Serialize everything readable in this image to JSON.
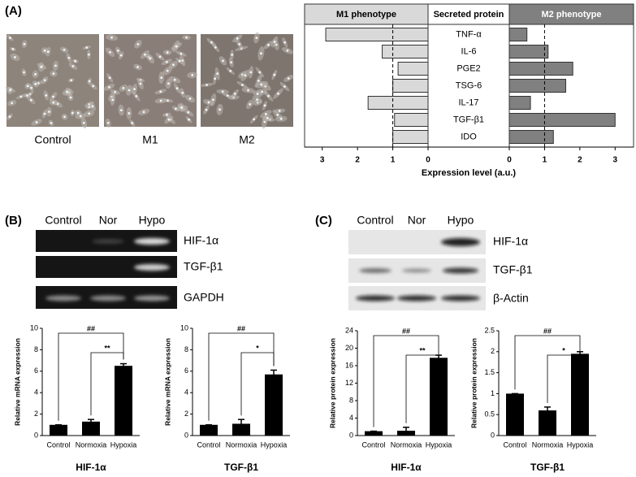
{
  "panels": [
    "(A)",
    "(B)",
    "(C)"
  ],
  "microscopy": [
    "Control",
    "M1",
    "M2"
  ],
  "rt_pcr": {
    "lanes": [
      "Control",
      "Nor",
      "Hypo"
    ],
    "genes": [
      "HIF-1α",
      "TGF-β1",
      "GAPDH"
    ]
  },
  "western_blot": {
    "lanes": [
      "Control",
      "Nor",
      "Hypo"
    ],
    "proteins": [
      "HIF-1α",
      "TGF-β1",
      "β-Actin"
    ]
  },
  "chart_data": [
    {
      "type": "butterfly",
      "category_header": "Secreted protein",
      "categories": [
        "TNF-α",
        "IL-6",
        "PGE2",
        "TSG-6",
        "IL-17",
        "TGF-β1",
        "IDO"
      ],
      "series": [
        {
          "name": "M1 phenotype",
          "color": "#d9d9d9",
          "values": [
            2.9,
            1.3,
            0.85,
            1.0,
            1.7,
            0.95,
            1.0
          ]
        },
        {
          "name": "M2 phenotype",
          "color": "#808080",
          "values": [
            0.5,
            1.1,
            1.8,
            1.6,
            0.6,
            3.0,
            1.25
          ]
        }
      ],
      "xlabel": "Expression level (a.u.)",
      "xlim": [
        0,
        3.5
      ],
      "xticks": [
        0,
        1,
        2,
        3
      ],
      "ref_line": 1
    },
    {
      "type": "bar",
      "title": "HIF-1α",
      "ylabel": "Relative mRNA expression",
      "categories": [
        "Control",
        "Normoxia",
        "Hypoxia"
      ],
      "values": [
        1,
        1.3,
        6.5
      ],
      "errors": [
        0,
        0.2,
        0.2
      ],
      "ylim": [
        0,
        10
      ],
      "yticks": [
        0,
        2,
        4,
        6,
        8,
        10
      ],
      "color": "#000000",
      "significance": [
        {
          "label": "##",
          "pair": [
            0,
            2
          ]
        },
        {
          "label": "**",
          "pair": [
            1,
            2
          ]
        }
      ]
    },
    {
      "type": "bar",
      "title": "TGF-β1",
      "ylabel": "Relative mRNA expression",
      "categories": [
        "Control",
        "Normoxia",
        "Hypoxia"
      ],
      "values": [
        1,
        1.1,
        5.7
      ],
      "errors": [
        0,
        0.4,
        0.4
      ],
      "ylim": [
        0,
        10
      ],
      "yticks": [
        0,
        2,
        4,
        6,
        8,
        10
      ],
      "color": "#000000",
      "significance": [
        {
          "label": "##",
          "pair": [
            0,
            2
          ]
        },
        {
          "label": "*",
          "pair": [
            1,
            2
          ]
        }
      ]
    },
    {
      "type": "bar",
      "title": "HIF-1α",
      "ylabel": "Relative protein expression",
      "categories": [
        "Control",
        "Normoxia",
        "Hypoxia"
      ],
      "values": [
        1,
        1.1,
        17.8
      ],
      "errors": [
        0,
        0.8,
        0.6
      ],
      "ylim": [
        0,
        24
      ],
      "yticks": [
        0,
        4,
        8,
        12,
        16,
        20,
        24
      ],
      "color": "#000000",
      "significance": [
        {
          "label": "##",
          "pair": [
            0,
            2
          ]
        },
        {
          "label": "**",
          "pair": [
            1,
            2
          ]
        }
      ]
    },
    {
      "type": "bar",
      "title": "TGF-β1",
      "ylabel": "Relative protein expression",
      "categories": [
        "Control",
        "Normoxia",
        "Hypoxia"
      ],
      "values": [
        1,
        0.6,
        1.95
      ],
      "errors": [
        0,
        0.08,
        0.05
      ],
      "ylim": [
        0,
        2.5
      ],
      "yticks": [
        0,
        0.5,
        1,
        1.5,
        2,
        2.5
      ],
      "color": "#000000",
      "significance": [
        {
          "label": "##",
          "pair": [
            0,
            2
          ]
        },
        {
          "label": "*",
          "pair": [
            1,
            2
          ]
        }
      ]
    }
  ]
}
